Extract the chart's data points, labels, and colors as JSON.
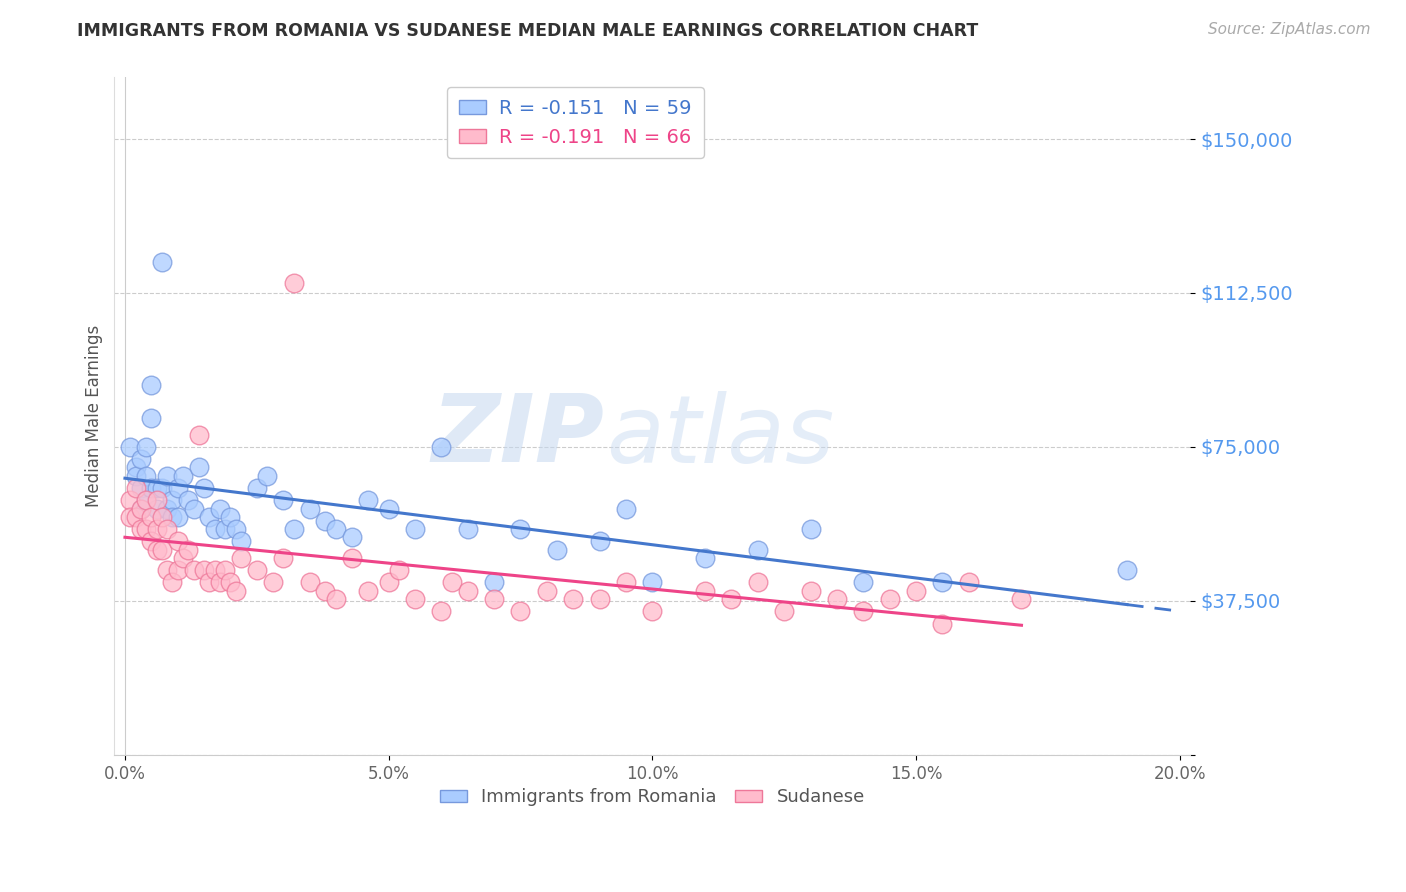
{
  "title": "IMMIGRANTS FROM ROMANIA VS SUDANESE MEDIAN MALE EARNINGS CORRELATION CHART",
  "source": "Source: ZipAtlas.com",
  "ylabel": "Median Male Earnings",
  "yticks": [
    0,
    37500,
    75000,
    112500,
    150000
  ],
  "ytick_labels": [
    "",
    "$37,500",
    "$75,000",
    "$112,500",
    "$150,000"
  ],
  "xlim": [
    0.0,
    0.2
  ],
  "ylim": [
    0,
    165000
  ],
  "romania_color": "#aaccff",
  "romania_edge": "#7799dd",
  "sudanese_color": "#ffbbcc",
  "sudanese_edge": "#ee7799",
  "romania_R": -0.151,
  "romania_N": 59,
  "sudanese_R": -0.191,
  "sudanese_N": 66,
  "legend_label_romania": "Immigrants from Romania",
  "legend_label_sudanese": "Sudanese",
  "romania_line_color": "#4477cc",
  "sudanese_line_color": "#ee4488",
  "romania_scatter_x": [
    0.001,
    0.002,
    0.002,
    0.003,
    0.003,
    0.003,
    0.004,
    0.004,
    0.004,
    0.005,
    0.005,
    0.005,
    0.006,
    0.006,
    0.007,
    0.007,
    0.008,
    0.008,
    0.009,
    0.009,
    0.01,
    0.01,
    0.011,
    0.012,
    0.013,
    0.014,
    0.015,
    0.016,
    0.017,
    0.018,
    0.019,
    0.02,
    0.021,
    0.022,
    0.025,
    0.027,
    0.03,
    0.032,
    0.035,
    0.038,
    0.04,
    0.043,
    0.046,
    0.05,
    0.055,
    0.06,
    0.065,
    0.07,
    0.075,
    0.082,
    0.09,
    0.095,
    0.1,
    0.11,
    0.12,
    0.13,
    0.14,
    0.155,
    0.19
  ],
  "romania_scatter_y": [
    75000,
    70000,
    68000,
    72000,
    65000,
    60000,
    75000,
    68000,
    62000,
    90000,
    82000,
    65000,
    65000,
    60000,
    120000,
    65000,
    68000,
    60000,
    62000,
    58000,
    65000,
    58000,
    68000,
    62000,
    60000,
    70000,
    65000,
    58000,
    55000,
    60000,
    55000,
    58000,
    55000,
    52000,
    65000,
    68000,
    62000,
    55000,
    60000,
    57000,
    55000,
    53000,
    62000,
    60000,
    55000,
    75000,
    55000,
    42000,
    55000,
    50000,
    52000,
    60000,
    42000,
    48000,
    50000,
    55000,
    42000,
    42000,
    45000
  ],
  "sudanese_scatter_x": [
    0.001,
    0.001,
    0.002,
    0.002,
    0.003,
    0.003,
    0.004,
    0.004,
    0.005,
    0.005,
    0.006,
    0.006,
    0.006,
    0.007,
    0.007,
    0.008,
    0.008,
    0.009,
    0.01,
    0.01,
    0.011,
    0.012,
    0.013,
    0.014,
    0.015,
    0.016,
    0.017,
    0.018,
    0.019,
    0.02,
    0.021,
    0.022,
    0.025,
    0.028,
    0.03,
    0.032,
    0.035,
    0.038,
    0.04,
    0.043,
    0.046,
    0.05,
    0.052,
    0.055,
    0.06,
    0.062,
    0.065,
    0.07,
    0.075,
    0.08,
    0.085,
    0.09,
    0.095,
    0.1,
    0.11,
    0.115,
    0.12,
    0.125,
    0.13,
    0.135,
    0.14,
    0.145,
    0.15,
    0.155,
    0.16,
    0.17
  ],
  "sudanese_scatter_y": [
    62000,
    58000,
    65000,
    58000,
    60000,
    55000,
    62000,
    55000,
    58000,
    52000,
    62000,
    55000,
    50000,
    58000,
    50000,
    55000,
    45000,
    42000,
    52000,
    45000,
    48000,
    50000,
    45000,
    78000,
    45000,
    42000,
    45000,
    42000,
    45000,
    42000,
    40000,
    48000,
    45000,
    42000,
    48000,
    115000,
    42000,
    40000,
    38000,
    48000,
    40000,
    42000,
    45000,
    38000,
    35000,
    42000,
    40000,
    38000,
    35000,
    40000,
    38000,
    38000,
    42000,
    35000,
    40000,
    38000,
    42000,
    35000,
    40000,
    38000,
    35000,
    38000,
    40000,
    32000,
    42000,
    38000
  ],
  "watermark_zip": "ZIP",
  "watermark_atlas": "atlas",
  "background_color": "#ffffff",
  "grid_color": "#cccccc",
  "title_color": "#333333",
  "yticklabel_color": "#5599ee",
  "source_color": "#aaaaaa"
}
